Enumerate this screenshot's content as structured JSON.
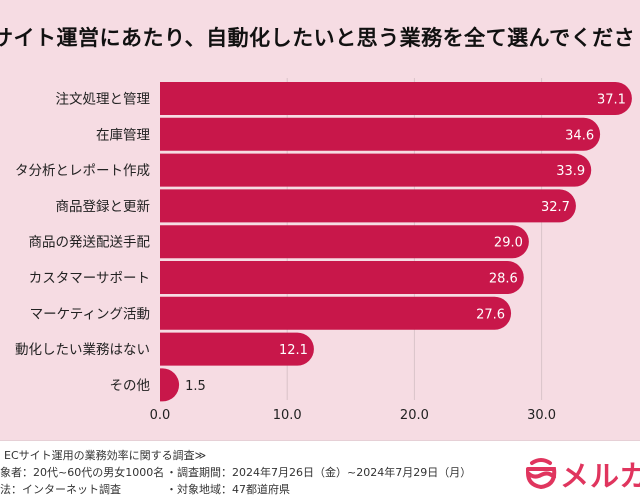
{
  "chart_data": {
    "type": "bar",
    "orientation": "horizontal",
    "title": "サイト運営にあたり、自動化したいと思う業務を全て選んでくださ",
    "categories": [
      "注文処理と管理",
      "在庫管理",
      "タ分析とレポート作成",
      "商品登録と更新",
      "商品の発送配送手配",
      "カスタマーサポート",
      "マーケティング活動",
      "動化したい業務はない",
      "その他"
    ],
    "values": [
      37.1,
      34.6,
      33.9,
      32.7,
      29.0,
      28.6,
      27.6,
      12.1,
      1.5
    ],
    "value_labels": [
      "37.1",
      "34.6",
      "33.9",
      "32.7",
      "29.0",
      "28.6",
      "27.6",
      "12.1",
      "1.5"
    ],
    "xticks": [
      "0.0",
      "10.0",
      "20.0",
      "30.0"
    ],
    "xlim": [
      0,
      37.5
    ],
    "grid": true,
    "bar_color": "#c8174a",
    "background": "#f6dce3"
  },
  "footer": {
    "line1": "ECサイト運用の業務効率に関する調査≫",
    "line2a": "象者：20代~60代の男女1000名",
    "line2b": "・調査期間：2024年7月26日（金）~2024年7月29日（月）",
    "line3a": "法：インターネット調査",
    "line3b": "・対象地域：47都道府県",
    "logo": "メルカ",
    "logo_color": "#e0355e"
  }
}
